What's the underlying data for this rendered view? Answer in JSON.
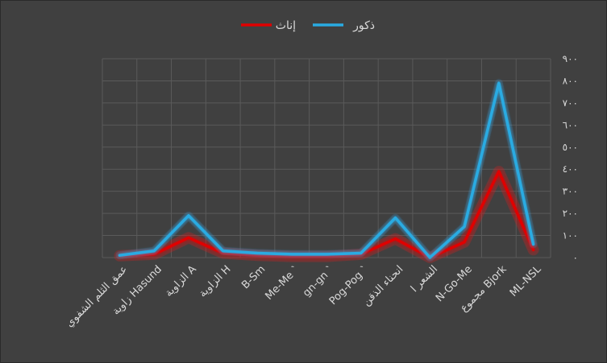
{
  "chart_data": {
    "type": "line",
    "categories": [
      "عمق الثلم الشفوي",
      "زاوية Hasund",
      "الزاوية A",
      "الزاوية H",
      "B-Sm",
      "Me-Me `",
      "gn-gn `",
      "Pog-Pog `",
      "انحناء الذقن",
      "الشعر ا",
      "N-Go-Me",
      "مجموع Bjork",
      "ML-NSL"
    ],
    "series": [
      {
        "name": "ذكور",
        "color": "#29abe2",
        "values": [
          10,
          30,
          190,
          30,
          20,
          15,
          15,
          20,
          180,
          0,
          140,
          790,
          60
        ]
      },
      {
        "name": "إناث",
        "color": "#e00000",
        "values": [
          8,
          15,
          90,
          20,
          10,
          5,
          5,
          15,
          85,
          0,
          70,
          390,
          35
        ]
      }
    ],
    "y_ticks": [
      "٠",
      "١٠٠",
      "٢٠٠",
      "٣٠٠",
      "٤٠٠",
      "٥٠٠",
      "٦٠٠",
      "٧٠٠",
      "٨٠٠",
      "٩٠٠"
    ],
    "ylim": [
      0,
      900
    ],
    "grid": true,
    "legend_position": "top-center",
    "colors": {
      "background": "#404040",
      "grid": "#5a5a5a",
      "text": "#d9d9d9"
    }
  }
}
